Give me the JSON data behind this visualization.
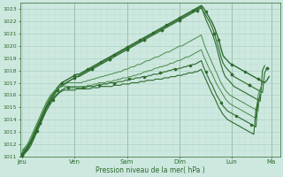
{
  "xlabel": "Pression niveau de la mer( hPa )",
  "background_color": "#cde8df",
  "grid_color": "#a8ccbf",
  "line_color_dark": "#2d6a2d",
  "line_color_light": "#5a9a5a",
  "ylim": [
    1011,
    1023.5
  ],
  "yticks": [
    1011,
    1012,
    1013,
    1014,
    1015,
    1016,
    1017,
    1018,
    1019,
    1020,
    1021,
    1022,
    1023
  ],
  "day_labels": [
    "Jeu",
    "Ven",
    "Sam",
    "Dim",
    "Lun",
    "Ma"
  ],
  "day_positions": [
    0,
    24,
    48,
    72,
    96,
    114
  ],
  "xlim": [
    -1,
    118
  ],
  "series": [
    {
      "color": "#2d6a2d",
      "lw": 1.0,
      "marker": "o",
      "ms": 1.5,
      "markevery": 6,
      "y": [
        1011.2,
        1011.4,
        1011.6,
        1011.9,
        1012.2,
        1012.6,
        1013.0,
        1013.4,
        1013.8,
        1014.2,
        1014.6,
        1015.0,
        1015.4,
        1015.7,
        1016.0,
        1016.3,
        1016.6,
        1016.8,
        1017.0,
        1017.1,
        1017.2,
        1017.3,
        1017.4,
        1017.5,
        1017.6,
        1017.7,
        1017.7,
        1017.8,
        1017.9,
        1018.0,
        1018.1,
        1018.2,
        1018.3,
        1018.4,
        1018.5,
        1018.6,
        1018.7,
        1018.8,
        1018.9,
        1019.0,
        1019.1,
        1019.2,
        1019.3,
        1019.4,
        1019.5,
        1019.6,
        1019.7,
        1019.8,
        1019.9,
        1020.0,
        1020.1,
        1020.2,
        1020.3,
        1020.4,
        1020.5,
        1020.6,
        1020.7,
        1020.8,
        1020.9,
        1021.0,
        1021.1,
        1021.2,
        1021.3,
        1021.4,
        1021.5,
        1021.6,
        1021.7,
        1021.8,
        1021.9,
        1022.0,
        1022.1,
        1022.2,
        1022.3,
        1022.4,
        1022.5,
        1022.6,
        1022.7,
        1022.8,
        1022.9,
        1023.0,
        1023.1,
        1023.2,
        1023.3,
        1023.1,
        1022.8,
        1022.5,
        1022.2,
        1021.9,
        1021.5,
        1021.0,
        1020.5,
        1019.8,
        1019.2,
        1019.0,
        1018.8,
        1018.6,
        1018.5,
        1018.4,
        1018.3,
        1018.2,
        1018.1,
        1018.0,
        1017.9,
        1017.8,
        1017.7,
        1017.6,
        1017.5,
        1017.4,
        1017.3,
        1017.2,
        1017.1,
        1017.0,
        1017.2,
        1017.5
      ]
    },
    {
      "color": "#2d6a2d",
      "lw": 0.8,
      "marker": "D",
      "ms": 1.5,
      "markevery": 8,
      "y": [
        1011.1,
        1011.3,
        1011.5,
        1011.8,
        1012.1,
        1012.5,
        1012.9,
        1013.3,
        1013.7,
        1014.1,
        1014.5,
        1014.9,
        1015.2,
        1015.5,
        1015.8,
        1016.1,
        1016.4,
        1016.6,
        1016.8,
        1016.9,
        1017.0,
        1017.1,
        1017.2,
        1017.3,
        1017.4,
        1017.5,
        1017.5,
        1017.6,
        1017.7,
        1017.8,
        1017.9,
        1018.0,
        1018.1,
        1018.2,
        1018.3,
        1018.4,
        1018.5,
        1018.6,
        1018.7,
        1018.8,
        1018.9,
        1019.0,
        1019.1,
        1019.2,
        1019.3,
        1019.4,
        1019.5,
        1019.6,
        1019.7,
        1019.8,
        1019.9,
        1020.0,
        1020.1,
        1020.2,
        1020.3,
        1020.4,
        1020.5,
        1020.6,
        1020.7,
        1020.8,
        1020.9,
        1021.0,
        1021.1,
        1021.2,
        1021.3,
        1021.4,
        1021.5,
        1021.6,
        1021.7,
        1021.8,
        1021.9,
        1022.0,
        1022.1,
        1022.2,
        1022.3,
        1022.4,
        1022.5,
        1022.6,
        1022.7,
        1022.8,
        1022.9,
        1023.0,
        1023.1,
        1022.8,
        1022.5,
        1022.2,
        1021.9,
        1021.5,
        1021.0,
        1020.4,
        1019.8,
        1019.1,
        1018.6,
        1018.3,
        1018.1,
        1017.9,
        1017.7,
        1017.5,
        1017.4,
        1017.3,
        1017.2,
        1017.1,
        1017.0,
        1016.9,
        1016.8,
        1016.7,
        1016.6,
        1016.5,
        1016.4,
        1016.3,
        1016.2,
        1017.8,
        1018.2
      ]
    },
    {
      "color": "#2d6a2d",
      "lw": 0.8,
      "marker": null,
      "ms": 0,
      "markevery": 1,
      "y": [
        1011.3,
        1011.5,
        1011.7,
        1012.0,
        1012.3,
        1012.7,
        1013.1,
        1013.5,
        1013.9,
        1014.3,
        1014.7,
        1015.1,
        1015.4,
        1015.7,
        1016.0,
        1016.2,
        1016.4,
        1016.6,
        1016.8,
        1016.9,
        1017.0,
        1017.1,
        1017.2,
        1017.3,
        1017.4,
        1017.5,
        1017.6,
        1017.7,
        1017.8,
        1017.9,
        1018.0,
        1018.1,
        1018.2,
        1018.3,
        1018.4,
        1018.5,
        1018.6,
        1018.7,
        1018.8,
        1018.9,
        1019.0,
        1019.1,
        1019.2,
        1019.3,
        1019.4,
        1019.5,
        1019.6,
        1019.7,
        1019.8,
        1019.9,
        1020.0,
        1020.1,
        1020.2,
        1020.3,
        1020.4,
        1020.5,
        1020.6,
        1020.7,
        1020.8,
        1020.9,
        1021.0,
        1021.1,
        1021.2,
        1021.3,
        1021.4,
        1021.5,
        1021.6,
        1021.7,
        1021.8,
        1021.9,
        1022.0,
        1022.1,
        1022.2,
        1022.3,
        1022.4,
        1022.5,
        1022.6,
        1022.7,
        1022.8,
        1022.9,
        1023.0,
        1023.1,
        1023.2,
        1022.7,
        1022.2,
        1021.8,
        1021.4,
        1021.0,
        1020.5,
        1019.9,
        1019.2,
        1018.5,
        1017.9,
        1017.5,
        1017.3,
        1017.1,
        1016.9,
        1016.7,
        1016.6,
        1016.5,
        1016.4,
        1016.3,
        1016.2,
        1016.1,
        1016.0,
        1015.9,
        1015.8,
        1015.7,
        1015.6,
        1015.5,
        1018.0,
        1018.4
      ]
    },
    {
      "color": "#4a8a4a",
      "lw": 0.7,
      "marker": null,
      "ms": 0,
      "markevery": 1,
      "y": [
        1011.4,
        1011.6,
        1011.8,
        1012.1,
        1012.5,
        1012.9,
        1013.3,
        1013.7,
        1014.1,
        1014.5,
        1014.9,
        1015.3,
        1015.6,
        1015.9,
        1016.1,
        1016.3,
        1016.5,
        1016.6,
        1016.7,
        1016.8,
        1016.9,
        1017.0,
        1017.0,
        1017.0,
        1017.0,
        1017.0,
        1017.0,
        1017.0,
        1017.1,
        1017.1,
        1017.2,
        1017.2,
        1017.3,
        1017.3,
        1017.4,
        1017.4,
        1017.5,
        1017.5,
        1017.6,
        1017.6,
        1017.7,
        1017.7,
        1017.8,
        1017.8,
        1017.9,
        1017.9,
        1018.0,
        1018.1,
        1018.1,
        1018.2,
        1018.3,
        1018.3,
        1018.4,
        1018.5,
        1018.5,
        1018.6,
        1018.7,
        1018.8,
        1018.8,
        1018.9,
        1019.0,
        1019.1,
        1019.1,
        1019.2,
        1019.3,
        1019.4,
        1019.5,
        1019.5,
        1019.6,
        1019.7,
        1019.8,
        1019.9,
        1020.0,
        1020.0,
        1020.1,
        1020.2,
        1020.3,
        1020.4,
        1020.5,
        1020.6,
        1020.7,
        1020.8,
        1020.9,
        1020.3,
        1019.8,
        1019.4,
        1019.0,
        1018.6,
        1018.2,
        1017.8,
        1017.4,
        1017.0,
        1016.7,
        1016.4,
        1016.2,
        1016.0,
        1015.9,
        1015.8,
        1015.7,
        1015.6,
        1015.5,
        1015.4,
        1015.3,
        1015.2,
        1015.1,
        1015.0,
        1014.9,
        1014.8,
        1014.7,
        1016.5,
        1017.0
      ]
    },
    {
      "color": "#4a8a4a",
      "lw": 0.7,
      "marker": null,
      "ms": 0,
      "markevery": 1,
      "y": [
        1011.5,
        1011.7,
        1011.9,
        1012.2,
        1012.6,
        1013.0,
        1013.4,
        1013.8,
        1014.2,
        1014.6,
        1015.0,
        1015.4,
        1015.7,
        1016.0,
        1016.2,
        1016.4,
        1016.5,
        1016.6,
        1016.7,
        1016.7,
        1016.7,
        1016.7,
        1016.7,
        1016.7,
        1016.7,
        1016.7,
        1016.7,
        1016.7,
        1016.7,
        1016.7,
        1016.8,
        1016.8,
        1016.8,
        1016.9,
        1016.9,
        1017.0,
        1017.0,
        1017.0,
        1017.0,
        1017.1,
        1017.1,
        1017.1,
        1017.2,
        1017.2,
        1017.3,
        1017.3,
        1017.4,
        1017.4,
        1017.4,
        1017.5,
        1017.5,
        1017.6,
        1017.6,
        1017.7,
        1017.7,
        1017.8,
        1017.9,
        1017.9,
        1018.0,
        1018.0,
        1018.1,
        1018.2,
        1018.2,
        1018.3,
        1018.3,
        1018.4,
        1018.4,
        1018.5,
        1018.6,
        1018.6,
        1018.7,
        1018.8,
        1018.8,
        1018.9,
        1019.0,
        1019.1,
        1019.1,
        1019.2,
        1019.3,
        1019.4,
        1019.5,
        1019.6,
        1019.7,
        1019.2,
        1018.8,
        1018.4,
        1018.0,
        1017.7,
        1017.3,
        1016.9,
        1016.6,
        1016.3,
        1016.0,
        1015.7,
        1015.5,
        1015.3,
        1015.2,
        1015.1,
        1015.0,
        1014.9,
        1014.8,
        1014.7,
        1014.6,
        1014.5,
        1014.4,
        1014.3,
        1014.2,
        1014.1,
        1016.0,
        1016.5
      ]
    },
    {
      "color": "#2d6a2d",
      "lw": 0.8,
      "marker": "o",
      "ms": 1.5,
      "markevery": 7,
      "y": [
        1011.0,
        1011.2,
        1011.4,
        1011.6,
        1011.9,
        1012.3,
        1012.7,
        1013.1,
        1013.5,
        1013.9,
        1014.3,
        1014.7,
        1015.0,
        1015.3,
        1015.6,
        1015.8,
        1016.0,
        1016.2,
        1016.4,
        1016.5,
        1016.6,
        1016.6,
        1016.6,
        1016.6,
        1016.6,
        1016.6,
        1016.6,
        1016.6,
        1016.6,
        1016.6,
        1016.7,
        1016.7,
        1016.7,
        1016.7,
        1016.8,
        1016.8,
        1016.8,
        1016.9,
        1016.9,
        1016.9,
        1017.0,
        1017.0,
        1017.0,
        1017.0,
        1017.1,
        1017.1,
        1017.1,
        1017.2,
        1017.2,
        1017.3,
        1017.3,
        1017.3,
        1017.4,
        1017.4,
        1017.4,
        1017.5,
        1017.5,
        1017.5,
        1017.6,
        1017.6,
        1017.7,
        1017.7,
        1017.7,
        1017.8,
        1017.8,
        1017.9,
        1017.9,
        1018.0,
        1018.0,
        1018.1,
        1018.1,
        1018.1,
        1018.2,
        1018.2,
        1018.3,
        1018.3,
        1018.4,
        1018.4,
        1018.5,
        1018.5,
        1018.6,
        1018.7,
        1018.8,
        1018.3,
        1017.9,
        1017.5,
        1017.1,
        1016.8,
        1016.4,
        1016.0,
        1015.7,
        1015.4,
        1015.1,
        1014.9,
        1014.7,
        1014.6,
        1014.5,
        1014.4,
        1014.3,
        1014.2,
        1014.1,
        1014.0,
        1013.9,
        1013.8,
        1013.7,
        1013.6,
        1013.5,
        1013.4,
        1015.5,
        1016.0
      ]
    },
    {
      "color": "#2d6a2d",
      "lw": 0.8,
      "marker": null,
      "ms": 0,
      "markevery": 1,
      "y": [
        1011.1,
        1011.3,
        1011.5,
        1011.8,
        1012.1,
        1012.5,
        1012.9,
        1013.3,
        1013.7,
        1014.1,
        1014.5,
        1014.9,
        1015.2,
        1015.5,
        1015.7,
        1015.9,
        1016.1,
        1016.2,
        1016.3,
        1016.4,
        1016.4,
        1016.4,
        1016.4,
        1016.4,
        1016.4,
        1016.5,
        1016.5,
        1016.5,
        1016.5,
        1016.5,
        1016.5,
        1016.5,
        1016.6,
        1016.6,
        1016.6,
        1016.6,
        1016.7,
        1016.7,
        1016.7,
        1016.7,
        1016.7,
        1016.7,
        1016.8,
        1016.8,
        1016.8,
        1016.8,
        1016.9,
        1016.9,
        1016.9,
        1016.9,
        1017.0,
        1017.0,
        1017.0,
        1017.0,
        1017.1,
        1017.1,
        1017.1,
        1017.2,
        1017.2,
        1017.2,
        1017.2,
        1017.3,
        1017.3,
        1017.3,
        1017.3,
        1017.4,
        1017.4,
        1017.4,
        1017.5,
        1017.5,
        1017.5,
        1017.6,
        1017.6,
        1017.6,
        1017.7,
        1017.7,
        1017.8,
        1017.8,
        1017.8,
        1017.9,
        1017.9,
        1018.0,
        1018.1,
        1017.7,
        1017.3,
        1016.9,
        1016.5,
        1016.1,
        1015.8,
        1015.4,
        1015.0,
        1014.7,
        1014.4,
        1014.2,
        1014.0,
        1013.9,
        1013.8,
        1013.7,
        1013.6,
        1013.5,
        1013.4,
        1013.3,
        1013.2,
        1013.1,
        1013.0,
        1012.9,
        1012.8,
        1014.8,
        1015.5
      ]
    }
  ]
}
